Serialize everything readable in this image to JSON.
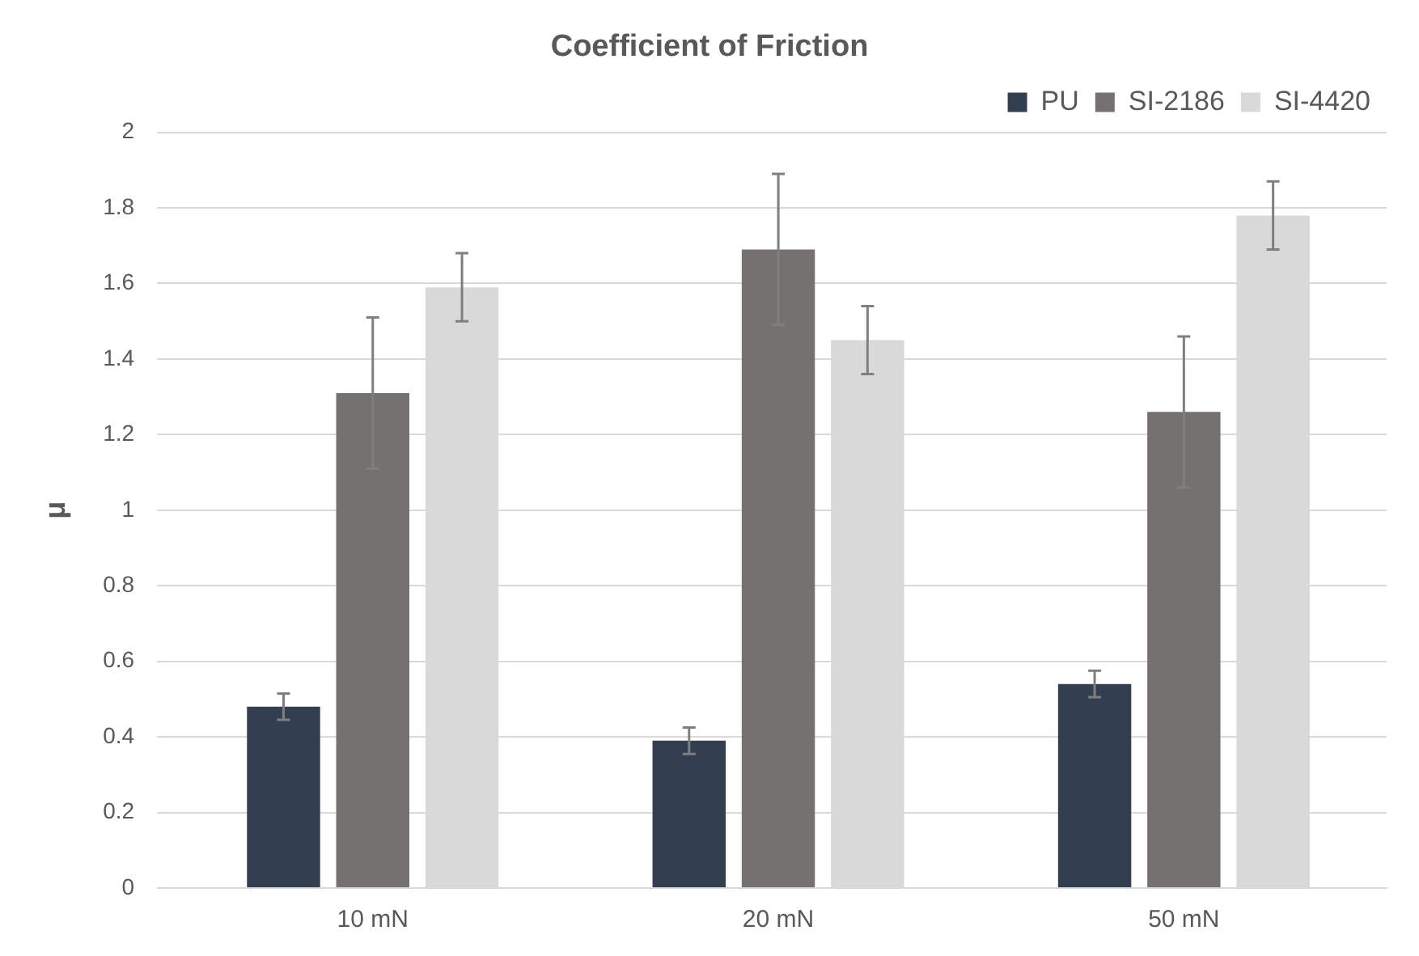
{
  "chart_data": {
    "type": "bar",
    "title": "Coefficient of Friction",
    "ylabel": "μ",
    "categories": [
      "10 mN",
      "20 mN",
      "50 mN"
    ],
    "series": [
      {
        "name": "PU",
        "color": "#333f50",
        "values": [
          0.48,
          0.39,
          0.54
        ],
        "errors": [
          0.035,
          0.035,
          0.035
        ]
      },
      {
        "name": "SI-2186",
        "color": "#767171",
        "values": [
          1.31,
          1.69,
          1.26
        ],
        "errors": [
          0.2,
          0.2,
          0.2
        ]
      },
      {
        "name": "SI-4420",
        "color": "#d9d9d9",
        "values": [
          1.59,
          1.45,
          1.78
        ],
        "errors": [
          0.09,
          0.09,
          0.09
        ]
      }
    ],
    "ylim": [
      0,
      2
    ],
    "yticks": [
      0,
      0.2,
      0.4,
      0.6,
      0.8,
      1,
      1.2,
      1.4,
      1.6,
      1.8,
      2
    ],
    "grid": "y",
    "legend": "top right"
  }
}
